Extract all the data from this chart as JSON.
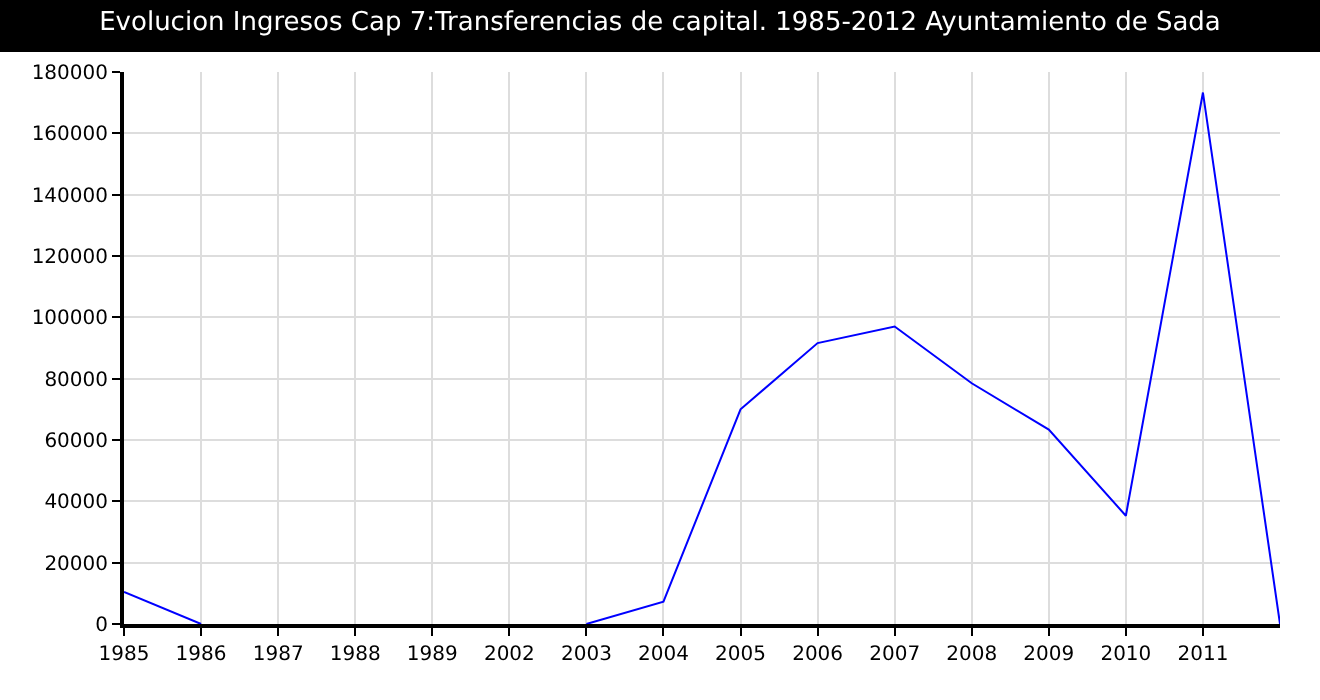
{
  "chart_data": {
    "type": "line",
    "title": "Evolucion Ingresos Cap 7:Transferencias de capital. 1985-2012 Ayuntamiento de Sada",
    "categories": [
      "1985",
      "1986",
      "1987",
      "1988",
      "1989",
      "2002",
      "2003",
      "2004",
      "2005",
      "2006",
      "2007",
      "2008",
      "2009",
      "2010",
      "2011",
      null
    ],
    "series": [
      {
        "color": "#0000ff",
        "values": [
          10500,
          0,
          null,
          null,
          null,
          null,
          0,
          7300,
          70000,
          91600,
          97000,
          78500,
          63400,
          35300,
          173300,
          0
        ]
      }
    ],
    "ylim": [
      0,
      180000
    ],
    "yticks": [
      0,
      20000,
      40000,
      60000,
      80000,
      100000,
      120000,
      140000,
      160000,
      180000
    ],
    "grid": true,
    "legend": false,
    "marker": "none",
    "line_style": "solid"
  }
}
